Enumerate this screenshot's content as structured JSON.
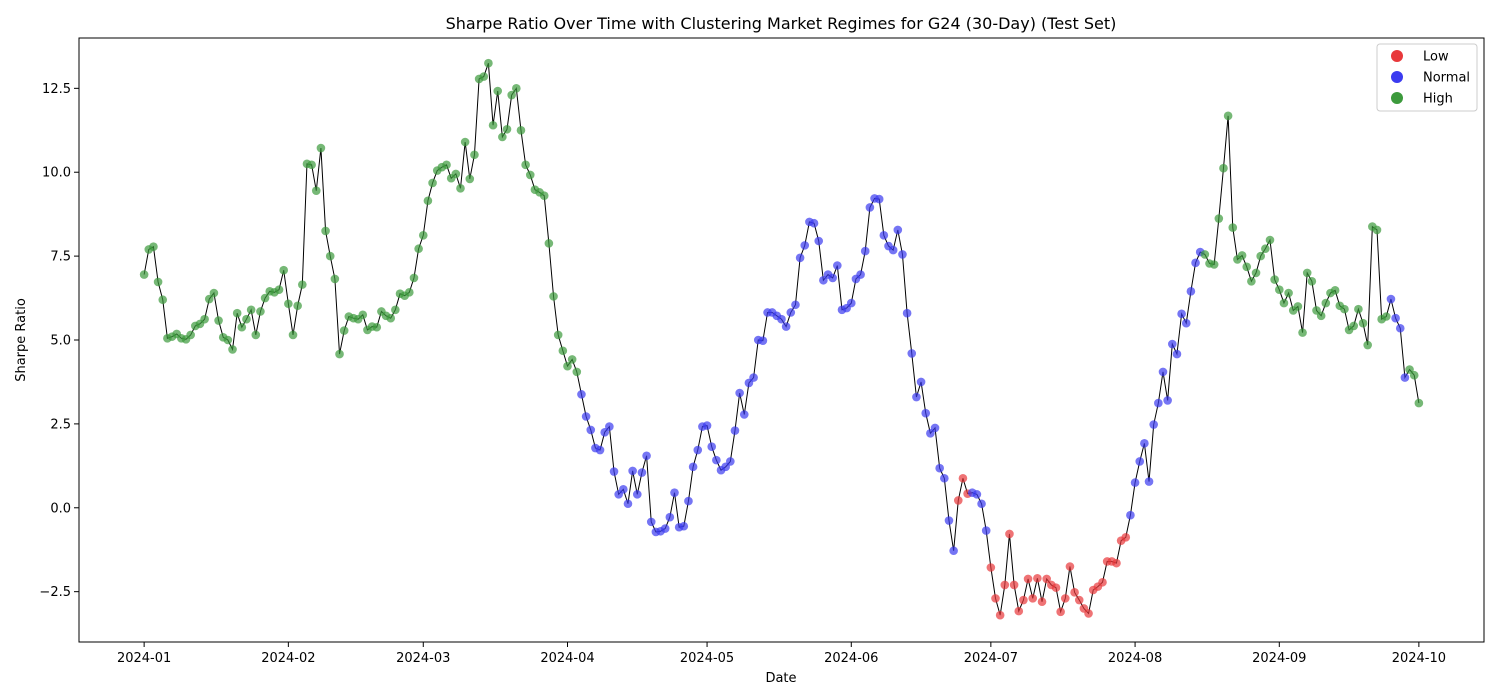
{
  "chart_data": {
    "type": "scatter",
    "title": "Sharpe Ratio Over Time with Clustering Market Regimes for G24 (30-Day) (Test Set)",
    "xlabel": "Date",
    "ylabel": "Sharpe Ratio",
    "x_range": [
      "2024-01-01",
      "2024-10-01"
    ],
    "xlim": [
      "2023-12-18",
      "2024-10-15"
    ],
    "ylim": [
      -4.0,
      14.0
    ],
    "x_ticks": [
      "2024-01",
      "2024-02",
      "2024-03",
      "2024-04",
      "2024-05",
      "2024-06",
      "2024-07",
      "2024-08",
      "2024-09",
      "2024-10"
    ],
    "y_ticks": [
      "−2.5",
      "0.0",
      "2.5",
      "5.0",
      "7.5",
      "10.0",
      "12.5"
    ],
    "grid": false,
    "legend_position": "top-right",
    "line_color": "#000000",
    "regimes": [
      {
        "name": "Low",
        "color": "#e8383b"
      },
      {
        "name": "Normal",
        "color": "#3b3bf0"
      },
      {
        "name": "High",
        "color": "#3c9a3c"
      }
    ],
    "regime_runs": [
      [
        0,
        "High"
      ],
      [
        94,
        "Normal"
      ],
      [
        175,
        "Low"
      ],
      [
        178,
        "Normal"
      ],
      [
        182,
        "Low"
      ],
      [
        212,
        "Normal"
      ],
      [
        228,
        "High"
      ],
      [
        268,
        "Normal"
      ],
      [
        272,
        "High"
      ]
    ],
    "values": [
      6.95,
      7.7,
      7.78,
      6.73,
      6.2,
      5.05,
      5.1,
      5.18,
      5.05,
      5.02,
      5.15,
      5.42,
      5.48,
      5.62,
      6.22,
      6.4,
      5.58,
      5.08,
      5.0,
      4.72,
      5.8,
      5.38,
      5.62,
      5.9,
      5.15,
      5.85,
      6.25,
      6.45,
      6.42,
      6.5,
      7.08,
      6.08,
      5.15,
      6.02,
      6.65,
      10.25,
      10.22,
      9.45,
      10.72,
      8.25,
      7.5,
      6.82,
      4.58,
      5.28,
      5.7,
      5.65,
      5.62,
      5.75,
      5.3,
      5.4,
      5.38,
      5.85,
      5.72,
      5.65,
      5.9,
      6.38,
      6.32,
      6.42,
      6.85,
      7.72,
      8.12,
      9.15,
      9.68,
      10.05,
      10.15,
      10.22,
      9.82,
      9.95,
      9.52,
      10.9,
      9.8,
      10.52,
      12.78,
      12.85,
      13.25,
      11.4,
      12.42,
      11.05,
      11.28,
      12.3,
      12.5,
      11.25,
      10.22,
      9.92,
      9.48,
      9.4,
      9.3,
      7.88,
      6.3,
      5.15,
      4.68,
      4.22,
      4.42,
      4.05,
      3.38,
      2.72,
      2.32,
      1.78,
      1.72,
      2.25,
      2.42,
      1.08,
      0.4,
      0.55,
      0.12,
      1.1,
      0.4,
      1.05,
      1.55,
      -0.42,
      -0.72,
      -0.7,
      -0.62,
      -0.28,
      0.45,
      -0.58,
      -0.55,
      0.2,
      1.22,
      1.72,
      2.42,
      2.45,
      1.82,
      1.42,
      1.12,
      1.22,
      1.38,
      2.3,
      3.42,
      2.78,
      3.72,
      3.88,
      5.0,
      4.98,
      5.82,
      5.82,
      5.72,
      5.62,
      5.4,
      5.82,
      6.05,
      7.45,
      7.82,
      8.52,
      8.48,
      7.95,
      6.78,
      6.95,
      6.85,
      7.22,
      5.9,
      5.95,
      6.1,
      6.82,
      6.95,
      7.65,
      8.95,
      9.22,
      9.2,
      8.12,
      7.8,
      7.68,
      8.28,
      7.55,
      5.8,
      4.6,
      3.3,
      3.75,
      2.82,
      2.22,
      2.38,
      1.18,
      0.88,
      -0.38,
      -1.28,
      0.22,
      0.88,
      0.42,
      0.45,
      0.4,
      0.12,
      -0.68,
      -1.78,
      -2.7,
      -3.2,
      -2.3,
      -0.78,
      -2.3,
      -3.08,
      -2.75,
      -2.12,
      -2.7,
      -2.1,
      -2.8,
      -2.12,
      -2.3,
      -2.38,
      -3.1,
      -2.7,
      -1.75,
      -2.52,
      -2.75,
      -3.0,
      -3.15,
      -2.45,
      -2.35,
      -2.22,
      -1.6,
      -1.6,
      -1.65,
      -0.98,
      -0.88,
      -0.22,
      0.75,
      1.38,
      1.92,
      0.78,
      2.48,
      3.12,
      4.05,
      3.2,
      4.88,
      4.58,
      5.78,
      5.5,
      6.45,
      7.3,
      7.62,
      7.55,
      7.28,
      7.25,
      8.62,
      10.12,
      11.68,
      8.35,
      7.4,
      7.52,
      7.18,
      6.75,
      7.0,
      7.5,
      7.72,
      7.98,
      6.8,
      6.5,
      6.1,
      6.4,
      5.88,
      6.0,
      5.22,
      7.0,
      6.75,
      5.88,
      5.72,
      6.1,
      6.4,
      6.48,
      6.02,
      5.92,
      5.3,
      5.42,
      5.92,
      5.5,
      4.85,
      8.38,
      8.28,
      5.62,
      5.7,
      6.22,
      5.65,
      5.35,
      3.88,
      4.12,
      3.95,
      3.12
    ]
  }
}
